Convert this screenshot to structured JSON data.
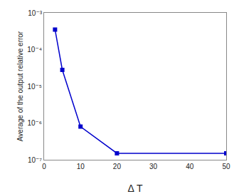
{
  "chart_data": {
    "type": "line",
    "x": [
      3,
      5,
      10,
      20,
      50
    ],
    "values": [
      0.00035,
      2.8e-05,
      8e-07,
      1.5e-07,
      1.5e-07
    ],
    "color": "#0000CC",
    "marker": "square",
    "xlabel": "Δ T",
    "ylabel": "Average of the output relative error",
    "xlim": [
      0,
      50
    ],
    "xticks": [
      0,
      10,
      20,
      30,
      40,
      50
    ],
    "ylim": [
      1e-07,
      0.001
    ],
    "yticks": [
      {
        "value": 1e-07,
        "label": "10⁻⁷"
      },
      {
        "value": 1e-06,
        "label": "10⁻⁶"
      },
      {
        "value": 1e-05,
        "label": "10⁻⁵"
      },
      {
        "value": 0.0001,
        "label": "10⁻⁴"
      },
      {
        "value": 0.001,
        "label": "10⁻³"
      }
    ],
    "log": "y",
    "grid": false
  }
}
